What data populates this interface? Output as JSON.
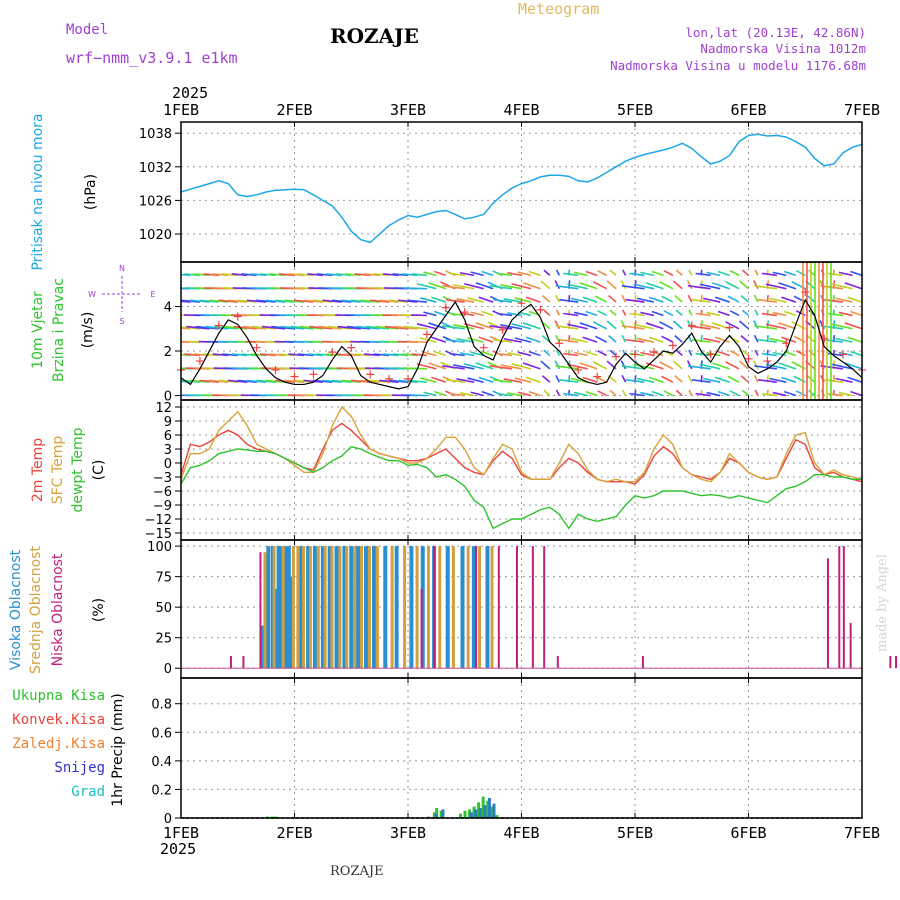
{
  "header": {
    "model_label": "Model",
    "model_name": "wrf−nmm_v3.9.1  e1km",
    "station": "ROZAJE",
    "meteogram": "Meteogram",
    "lonlat": "lon,lat (20.13E, 42.86N)",
    "altitude": "Nadmorska Visina 1012m",
    "model_altitude": "Nadmorska Visina u modelu 1176.68m",
    "credit": "made by Angel",
    "footer_station": "ROZAJE"
  },
  "time_axis": {
    "year": "2025",
    "ticks": [
      "1FEB",
      "2FEB",
      "3FEB",
      "4FEB",
      "5FEB",
      "6FEB",
      "7FEB"
    ]
  },
  "colors": {
    "pressure": "#1ea6e6",
    "wind_speed": "#000000",
    "temp2m": "#e8443c",
    "sfc_temp": "#d9a33a",
    "dewpoint": "#2ec22e",
    "high_cloud": "#2a8fd0",
    "mid_cloud": "#d2a040",
    "low_cloud": "#c0207a",
    "total_precip": "#2ec22e",
    "conv_precip": "#e8443c",
    "frozen_precip": "#f08030",
    "snow": "#3030d0",
    "hail": "#20c0c0",
    "ylab_purple": "#a040d0"
  },
  "chart_data": [
    {
      "type": "line",
      "ylabel_left": "Pritisak na nivou mora",
      "ylabel_unit": "(hPa)",
      "ylim": [
        1015,
        1040
      ],
      "yticks": [
        "1020",
        "1026",
        "1032",
        "1038"
      ],
      "grid": true,
      "x_days": [
        0,
        0.083,
        0.167,
        0.25,
        0.333,
        0.417,
        0.5,
        0.583,
        0.667,
        0.75,
        0.833,
        0.917,
        1.0,
        1.083,
        1.167,
        1.25,
        1.333,
        1.417,
        1.5,
        1.583,
        1.667,
        1.75,
        1.833,
        1.917,
        2.0,
        2.083,
        2.167,
        2.25,
        2.333,
        2.417,
        2.5,
        2.583,
        2.667,
        2.75,
        2.833,
        2.917,
        3.0,
        3.083,
        3.167,
        3.25,
        3.333,
        3.417,
        3.5,
        3.583,
        3.667,
        3.75,
        3.833,
        3.917,
        4.0,
        4.083,
        4.167,
        4.25,
        4.333,
        4.417,
        4.5,
        4.583,
        4.667,
        4.75,
        4.833,
        4.917,
        5.0,
        5.083,
        5.167,
        5.25,
        5.333,
        5.417,
        5.5,
        5.583,
        5.667,
        5.75,
        5.833,
        5.917,
        6.0
      ],
      "series": [
        {
          "values": [
            1027.5,
            1028.0,
            1028.5,
            1029.0,
            1029.5,
            1029.0,
            1027.0,
            1026.7,
            1027.0,
            1027.5,
            1027.8,
            1027.9,
            1028.0,
            1027.9,
            1027.0,
            1026.0,
            1025.0,
            1023.0,
            1020.5,
            1019.0,
            1018.5,
            1020.0,
            1021.5,
            1022.5,
            1023.3,
            1023.0,
            1023.5,
            1024.0,
            1024.2,
            1023.5,
            1022.7,
            1023.0,
            1023.5,
            1025.5,
            1027.0,
            1028.2,
            1029.0,
            1029.5,
            1030.2,
            1030.5,
            1030.5,
            1030.3,
            1029.5,
            1029.3,
            1030.0,
            1031.0,
            1032.0,
            1033.0,
            1033.7,
            1034.2,
            1034.6,
            1035.0,
            1035.5,
            1036.2,
            1035.3,
            1033.8,
            1032.5,
            1033.0,
            1034.0,
            1036.5,
            1037.6,
            1037.8,
            1037.5,
            1037.6,
            1037.3,
            1036.5,
            1035.5,
            1033.5,
            1032.2,
            1032.5,
            1034.5,
            1035.5,
            1036.0
          ]
        }
      ]
    },
    {
      "type": "line",
      "ylabel_left": [
        "10m Vjetar",
        "Brzina i Pravac"
      ],
      "ylabel_unit": "(m/s)",
      "compass": [
        "N",
        "W",
        "E",
        "S"
      ],
      "ylim": [
        -0.2,
        6
      ],
      "yticks": [
        "0",
        "2",
        "4"
      ],
      "grid": true,
      "x_days": [
        0,
        0.083,
        0.167,
        0.25,
        0.333,
        0.417,
        0.5,
        0.583,
        0.667,
        0.75,
        0.833,
        0.917,
        1.0,
        1.083,
        1.167,
        1.25,
        1.333,
        1.417,
        1.5,
        1.583,
        1.667,
        1.75,
        1.833,
        1.917,
        2.0,
        2.083,
        2.167,
        2.25,
        2.333,
        2.417,
        2.5,
        2.583,
        2.667,
        2.75,
        2.833,
        2.917,
        3.0,
        3.083,
        3.167,
        3.25,
        3.333,
        3.417,
        3.5,
        3.583,
        3.667,
        3.75,
        3.833,
        3.917,
        4.0,
        4.083,
        4.167,
        4.25,
        4.333,
        4.417,
        4.5,
        4.583,
        4.667,
        4.75,
        4.833,
        4.917,
        5.0,
        5.083,
        5.167,
        5.25,
        5.333,
        5.417,
        5.5,
        5.583,
        5.667,
        5.75,
        5.833,
        5.917,
        6.0
      ],
      "series": [
        {
          "values": [
            0.8,
            0.5,
            1.2,
            2.0,
            2.8,
            3.4,
            3.2,
            2.6,
            1.8,
            1.2,
            0.8,
            0.6,
            0.5,
            0.5,
            0.6,
            0.9,
            1.6,
            2.2,
            1.8,
            0.9,
            0.6,
            0.5,
            0.4,
            0.3,
            0.4,
            1.2,
            2.4,
            3.0,
            3.6,
            4.2,
            3.4,
            2.2,
            1.8,
            1.6,
            2.6,
            3.4,
            3.8,
            4.1,
            3.5,
            2.4,
            2.0,
            1.4,
            0.8,
            0.6,
            0.5,
            0.6,
            1.4,
            1.9,
            1.5,
            1.2,
            1.6,
            2.0,
            1.9,
            2.3,
            2.8,
            2.0,
            1.5,
            2.2,
            2.7,
            2.2,
            1.3,
            1.0,
            1.2,
            1.5,
            2.0,
            3.2,
            4.3,
            3.6,
            2.2,
            1.8,
            1.5,
            1.2,
            0.8
          ]
        }
      ]
    },
    {
      "type": "line",
      "ylabel_left": [
        "2m Temp",
        "SFC Temp",
        "dewpt Temp"
      ],
      "ylabel_unit": "(C)",
      "ylim": [
        -16.5,
        13.5
      ],
      "yticks": [
        "12",
        "9",
        "6",
        "3",
        "0",
        "−3",
        "−6",
        "−9",
        "−12",
        "−15"
      ],
      "grid": true,
      "x_days": [
        0,
        0.083,
        0.167,
        0.25,
        0.333,
        0.417,
        0.5,
        0.583,
        0.667,
        0.75,
        0.833,
        0.917,
        1.0,
        1.083,
        1.167,
        1.25,
        1.333,
        1.417,
        1.5,
        1.583,
        1.667,
        1.75,
        1.833,
        1.917,
        2.0,
        2.083,
        2.167,
        2.25,
        2.333,
        2.417,
        2.5,
        2.583,
        2.667,
        2.75,
        2.833,
        2.917,
        3.0,
        3.083,
        3.167,
        3.25,
        3.333,
        3.417,
        3.5,
        3.583,
        3.667,
        3.75,
        3.833,
        3.917,
        4.0,
        4.083,
        4.167,
        4.25,
        4.333,
        4.417,
        4.5,
        4.583,
        4.667,
        4.75,
        4.833,
        4.917,
        5.0,
        5.083,
        5.167,
        5.25,
        5.333,
        5.417,
        5.5,
        5.583,
        5.667,
        5.75,
        5.833,
        5.917,
        6.0
      ],
      "series": [
        {
          "name": "2m Temp",
          "values": [
            -2.5,
            4,
            3.5,
            4.5,
            6,
            7,
            6,
            4,
            3,
            2.5,
            2,
            1,
            0,
            -1,
            -1.5,
            3,
            7,
            8.5,
            7,
            5,
            3,
            2,
            1.5,
            1,
            0.5,
            0.5,
            1,
            2,
            3,
            1,
            -1,
            -2,
            -2.5,
            0.5,
            2.5,
            1,
            -2.5,
            -3.5,
            -3.5,
            -3.5,
            -1,
            1,
            0,
            -2,
            -3.5,
            -4,
            -4,
            -4,
            -4.5,
            -2.5,
            1.5,
            3.5,
            2,
            -1,
            -2.5,
            -3,
            -3.5,
            -2,
            1,
            0,
            -2,
            -3,
            -3.5,
            -3,
            1,
            5,
            4,
            -1,
            -2.5,
            -2,
            -3,
            -3.5,
            -4
          ]
        },
        {
          "name": "SFC Temp",
          "values": [
            -3.5,
            2,
            2,
            3,
            7,
            9,
            11,
            8,
            4,
            3,
            2,
            1,
            -0.5,
            -2,
            -2,
            2,
            8,
            12,
            10,
            6,
            3,
            2,
            1.5,
            1,
            0,
            0,
            1,
            3,
            5.5,
            5.5,
            3,
            -1,
            -2.5,
            1,
            4,
            3,
            -2,
            -3.5,
            -3.5,
            -3.5,
            0,
            4,
            2,
            -1.5,
            -3.5,
            -4,
            -3.5,
            -4,
            -4,
            -2,
            3,
            6,
            4,
            -1,
            -2.5,
            -3.5,
            -4,
            -2,
            2,
            0,
            -2,
            -3,
            -3.5,
            -3,
            2,
            6,
            6.5,
            0,
            -2.5,
            -1.5,
            -2.5,
            -3,
            -3.5
          ]
        },
        {
          "name": "dewpt Temp",
          "values": [
            -4.5,
            -1,
            -0.5,
            0.5,
            2,
            2.5,
            3,
            2.8,
            2.5,
            2.5,
            2,
            1,
            0,
            -1,
            -2,
            -1,
            0.5,
            1.5,
            3.5,
            3,
            2,
            1.2,
            0.5,
            0.5,
            -0.5,
            -0.3,
            -1,
            -3,
            -2.5,
            -3.5,
            -5,
            -8,
            -9.5,
            -14,
            -13,
            -12,
            -12,
            -11,
            -10,
            -9.5,
            -11,
            -14,
            -11,
            -12,
            -12.5,
            -12,
            -11.5,
            -9,
            -7,
            -7.5,
            -7,
            -6,
            -6,
            -6,
            -6.5,
            -7,
            -6.8,
            -7,
            -7.5,
            -7,
            -7.5,
            -8,
            -8.5,
            -7,
            -5.5,
            -5,
            -4,
            -2.5,
            -2.5,
            -3,
            -3,
            -3.5,
            -3.5
          ]
        }
      ]
    },
    {
      "type": "bar",
      "ylabel_left": [
        "Visoka Oblacnost",
        "Srednja Oblacnost",
        "Niska Oblacnost"
      ],
      "ylabel_unit": "(%)",
      "ylim": [
        -8,
        105
      ],
      "yticks": [
        "100",
        "75",
        "50",
        "25",
        "0"
      ],
      "grid": true,
      "series": [
        {
          "name": "Visoka Oblacnost",
          "bars": [
            [
              0.72,
              35
            ],
            [
              0.77,
              100
            ],
            [
              0.81,
              100
            ],
            [
              0.84,
              65
            ],
            [
              0.86,
              100
            ],
            [
              0.88,
              100
            ],
            [
              0.92,
              100
            ],
            [
              0.95,
              100
            ],
            [
              0.97,
              75
            ],
            [
              1.06,
              100
            ],
            [
              1.12,
              100
            ],
            [
              1.18,
              100
            ],
            [
              1.25,
              100
            ],
            [
              1.31,
              100
            ],
            [
              1.37,
              100
            ],
            [
              1.44,
              100
            ],
            [
              1.5,
              100
            ],
            [
              1.56,
              100
            ],
            [
              1.63,
              100
            ],
            [
              1.7,
              100
            ],
            [
              1.8,
              100
            ],
            [
              1.9,
              100
            ],
            [
              2.03,
              100
            ],
            [
              2.13,
              100
            ],
            [
              2.23,
              100
            ],
            [
              2.35,
              100
            ],
            [
              2.48,
              100
            ],
            [
              2.58,
              100
            ],
            [
              2.7,
              100
            ]
          ]
        },
        {
          "name": "Srednja Oblacnost",
          "bars": [
            [
              0.74,
              95
            ],
            [
              0.82,
              100
            ],
            [
              0.9,
              100
            ],
            [
              0.99,
              100
            ],
            [
              1.03,
              100
            ],
            [
              1.08,
              100
            ],
            [
              1.14,
              100
            ],
            [
              1.21,
              100
            ],
            [
              1.27,
              100
            ],
            [
              1.33,
              100
            ],
            [
              1.4,
              100
            ],
            [
              1.46,
              100
            ],
            [
              1.53,
              100
            ],
            [
              1.59,
              100
            ],
            [
              1.66,
              100
            ],
            [
              1.73,
              100
            ],
            [
              1.86,
              100
            ],
            [
              1.97,
              100
            ],
            [
              2.08,
              100
            ],
            [
              2.18,
              100
            ],
            [
              2.28,
              100
            ],
            [
              2.4,
              100
            ],
            [
              2.53,
              100
            ],
            [
              2.63,
              100
            ],
            [
              2.74,
              100
            ]
          ]
        },
        {
          "name": "Niska Oblacnost",
          "bars": [
            [
              0.44,
              10
            ],
            [
              0.55,
              10
            ],
            [
              0.7,
              95
            ],
            [
              2.12,
              65
            ],
            [
              2.23,
              100
            ],
            [
              2.6,
              100
            ],
            [
              2.8,
              100
            ],
            [
              2.96,
              100
            ],
            [
              3.1,
              100
            ],
            [
              3.2,
              100
            ],
            [
              3.32,
              10
            ],
            [
              4.07,
              10
            ],
            [
              5.7,
              90
            ],
            [
              5.8,
              100
            ],
            [
              5.84,
              100
            ],
            [
              5.9,
              37
            ],
            [
              6.25,
              10
            ],
            [
              6.3,
              10
            ],
            [
              6.45,
              10
            ],
            [
              6.68,
              73
            ],
            [
              6.85,
              100
            ],
            [
              6.92,
              100
            ]
          ]
        }
      ]
    },
    {
      "type": "bar",
      "ylabel_left": [
        "Ukupna Kisa",
        "Konvek.Kisa",
        "Zaledj.Kisa",
        "Snijeg",
        "Grad"
      ],
      "ylabel_unit": "1hr Precip (mm)",
      "ylim": [
        0,
        0.98
      ],
      "yticks": [
        "0.8",
        "0.6",
        "0.4",
        "0.2",
        "0"
      ],
      "grid": true,
      "series": [
        {
          "name": "Ukupna Kisa",
          "bars": [
            [
              0.78,
              0.01
            ],
            [
              0.82,
              0.01
            ],
            [
              0.85,
              0.01
            ],
            [
              2.2,
              0.01
            ],
            [
              2.25,
              0.04
            ],
            [
              2.27,
              0.07
            ],
            [
              2.31,
              0.05
            ],
            [
              2.48,
              0.03
            ],
            [
              2.52,
              0.05
            ],
            [
              2.56,
              0.06
            ],
            [
              2.6,
              0.08
            ],
            [
              2.64,
              0.11
            ],
            [
              2.68,
              0.15
            ],
            [
              2.72,
              0.12
            ],
            [
              2.76,
              0.08
            ],
            [
              2.8,
              0.02
            ]
          ]
        },
        {
          "name": "Snijeg",
          "bars": [
            [
              2.23,
              0.03
            ],
            [
              2.29,
              0.06
            ],
            [
              2.54,
              0.04
            ],
            [
              2.58,
              0.06
            ],
            [
              2.62,
              0.07
            ],
            [
              2.66,
              0.09
            ],
            [
              2.7,
              0.14
            ],
            [
              2.74,
              0.1
            ]
          ]
        }
      ]
    }
  ]
}
